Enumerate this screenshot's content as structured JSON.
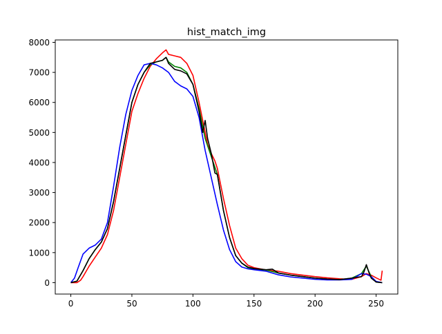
{
  "chart_data": {
    "type": "line",
    "title": "hist_match_img",
    "xlabel": "",
    "ylabel": "",
    "xlim": [
      -12.75,
      267.75
    ],
    "ylim": [
      -380,
      8080
    ],
    "xticks": [
      0,
      50,
      100,
      150,
      200,
      250
    ],
    "yticks": [
      0,
      1000,
      2000,
      3000,
      4000,
      5000,
      6000,
      7000,
      8000
    ],
    "xtick_labels": [
      "0",
      "50",
      "100",
      "150",
      "200",
      "250"
    ],
    "ytick_labels": [
      "0",
      "1000",
      "2000",
      "3000",
      "4000",
      "5000",
      "6000",
      "7000",
      "8000"
    ],
    "grid": false,
    "legend": "none",
    "series": [
      {
        "color": "#ff0000",
        "x": [
          0,
          5,
          8,
          10,
          15,
          20,
          25,
          30,
          35,
          40,
          45,
          50,
          55,
          60,
          65,
          70,
          75,
          78,
          80,
          85,
          90,
          95,
          100,
          105,
          108,
          110,
          112,
          115,
          118,
          120,
          125,
          130,
          135,
          140,
          145,
          150,
          160,
          170,
          180,
          190,
          200,
          210,
          220,
          230,
          238,
          242,
          246,
          250,
          254,
          255
        ],
        "y": [
          0,
          0,
          80,
          200,
          550,
          850,
          1150,
          1600,
          2400,
          3500,
          4600,
          5700,
          6300,
          6800,
          7200,
          7450,
          7650,
          7750,
          7600,
          7550,
          7500,
          7300,
          6900,
          6000,
          5400,
          5000,
          4600,
          4300,
          4050,
          3800,
          2800,
          1900,
          1150,
          800,
          580,
          500,
          420,
          380,
          300,
          250,
          200,
          160,
          130,
          110,
          200,
          300,
          250,
          160,
          80,
          400
        ]
      },
      {
        "color": "#008000",
        "x": [
          0,
          5,
          10,
          15,
          20,
          25,
          30,
          35,
          40,
          45,
          50,
          55,
          60,
          65,
          70,
          75,
          78,
          80,
          85,
          90,
          95,
          100,
          105,
          110,
          115,
          120,
          125,
          130,
          135,
          140,
          145,
          150,
          160,
          170,
          180,
          190,
          200,
          210,
          220,
          230,
          238,
          242,
          246,
          250,
          255
        ],
        "y": [
          0,
          50,
          400,
          800,
          1100,
          1350,
          1800,
          2700,
          3800,
          4900,
          6000,
          6600,
          7000,
          7250,
          7350,
          7400,
          7500,
          7350,
          7200,
          7150,
          7000,
          6600,
          5800,
          4800,
          4200,
          3600,
          2400,
          1500,
          900,
          650,
          500,
          450,
          420,
          320,
          250,
          200,
          150,
          120,
          100,
          150,
          300,
          550,
          200,
          20,
          0
        ]
      },
      {
        "color": "#0000ff",
        "x": [
          0,
          3,
          6,
          10,
          15,
          20,
          25,
          30,
          35,
          40,
          45,
          50,
          55,
          60,
          65,
          70,
          75,
          80,
          85,
          90,
          95,
          100,
          105,
          110,
          115,
          120,
          125,
          130,
          135,
          140,
          145,
          150,
          160,
          170,
          180,
          190,
          200,
          210,
          220,
          230,
          238,
          242,
          246,
          250,
          255
        ],
        "y": [
          0,
          150,
          500,
          950,
          1150,
          1250,
          1450,
          2000,
          3200,
          4500,
          5600,
          6400,
          6900,
          7250,
          7300,
          7250,
          7150,
          7000,
          6700,
          6550,
          6450,
          6200,
          5500,
          4400,
          3500,
          2600,
          1750,
          1100,
          700,
          520,
          460,
          430,
          380,
          260,
          190,
          150,
          110,
          90,
          90,
          110,
          300,
          280,
          200,
          40,
          0
        ]
      },
      {
        "color": "#000000",
        "x": [
          0,
          5,
          10,
          15,
          20,
          25,
          30,
          35,
          40,
          45,
          50,
          55,
          60,
          65,
          70,
          75,
          78,
          80,
          85,
          90,
          95,
          100,
          105,
          108,
          110,
          112,
          115,
          118,
          120,
          125,
          130,
          135,
          140,
          145,
          150,
          160,
          165,
          170,
          180,
          190,
          200,
          210,
          220,
          230,
          238,
          240,
          242,
          244,
          246,
          250,
          255
        ],
        "y": [
          0,
          50,
          400,
          800,
          1100,
          1350,
          1800,
          2700,
          3800,
          4900,
          6000,
          6600,
          7000,
          7300,
          7350,
          7400,
          7500,
          7300,
          7100,
          7050,
          6950,
          6600,
          5700,
          5000,
          5400,
          4800,
          4300,
          3650,
          3600,
          2400,
          1500,
          900,
          650,
          520,
          470,
          430,
          450,
          320,
          250,
          200,
          150,
          120,
          100,
          150,
          200,
          350,
          600,
          350,
          150,
          20,
          0
        ]
      }
    ]
  }
}
